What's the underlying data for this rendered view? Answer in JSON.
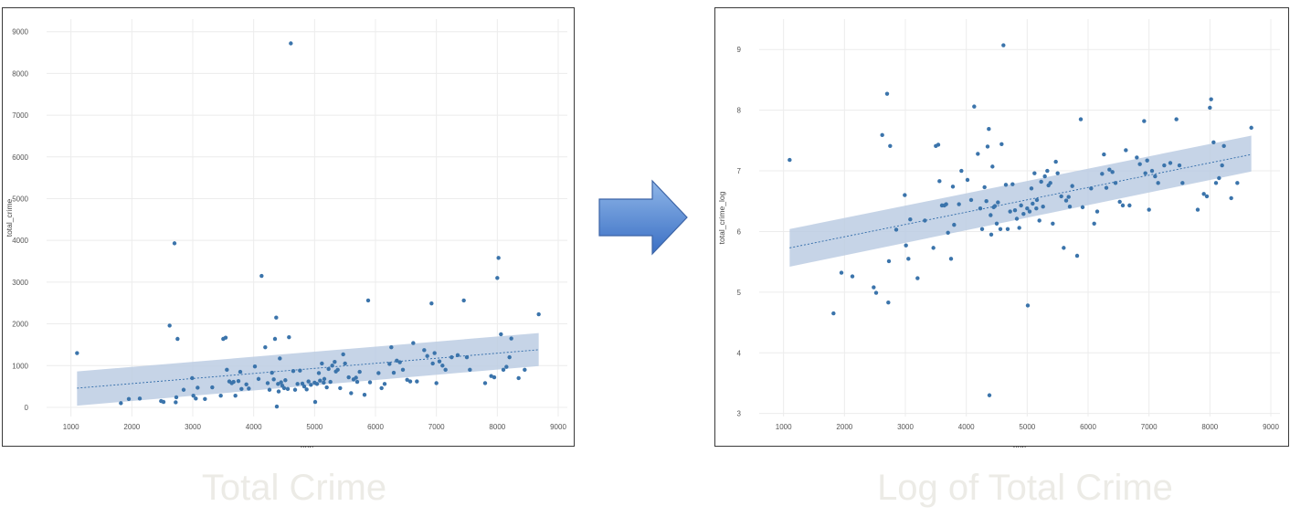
{
  "colors": {
    "point": "#3b74ab",
    "trend": "#2e6aa8",
    "band": "#bccde3",
    "grid": "#ececec",
    "caption": "#ecebe6",
    "arrow_top": "#8fb6e8",
    "arrow_bottom": "#3a6fc4",
    "arrow_stroke": "#3c64a6"
  },
  "arrow_icon": "right-arrow-icon",
  "captions": {
    "left": "Total Crime",
    "right": "Log of Total Crime"
  },
  "chart_data": [
    {
      "type": "scatter",
      "title": "",
      "xlabel": "pop",
      "ylabel": "total_crime",
      "xlim": [
        600,
        9150
      ],
      "ylim": [
        -220,
        9300
      ],
      "xticks": [
        1000,
        2000,
        3000,
        4000,
        5000,
        6000,
        7000,
        8000,
        9000
      ],
      "yticks": [
        0,
        1000,
        2000,
        3000,
        4000,
        5000,
        6000,
        7000,
        8000,
        9000
      ],
      "grid": true,
      "regression": {
        "x": [
          1100,
          8680
        ],
        "y": [
          460,
          1380
        ],
        "ci_low": [
          40,
          990
        ],
        "ci_high": [
          860,
          1780
        ]
      },
      "points": [
        [
          1100,
          1300
        ],
        [
          1820,
          100
        ],
        [
          1950,
          200
        ],
        [
          2130,
          210
        ],
        [
          2480,
          150
        ],
        [
          2520,
          130
        ],
        [
          2620,
          1960
        ],
        [
          2700,
          3930
        ],
        [
          2720,
          120
        ],
        [
          2750,
          1640
        ],
        [
          2730,
          240
        ],
        [
          2850,
          420
        ],
        [
          2990,
          700
        ],
        [
          3010,
          280
        ],
        [
          3050,
          210
        ],
        [
          3080,
          470
        ],
        [
          3200,
          200
        ],
        [
          3320,
          480
        ],
        [
          3460,
          280
        ],
        [
          3500,
          1640
        ],
        [
          3540,
          1670
        ],
        [
          3560,
          900
        ],
        [
          3600,
          620
        ],
        [
          3640,
          580
        ],
        [
          3670,
          610
        ],
        [
          3700,
          280
        ],
        [
          3750,
          630
        ],
        [
          3780,
          850
        ],
        [
          3800,
          440
        ],
        [
          3880,
          550
        ],
        [
          3920,
          450
        ],
        [
          4020,
          980
        ],
        [
          4080,
          680
        ],
        [
          4130,
          3150
        ],
        [
          4190,
          1440
        ],
        [
          4230,
          580
        ],
        [
          4260,
          420
        ],
        [
          4300,
          830
        ],
        [
          4330,
          670
        ],
        [
          4350,
          1640
        ],
        [
          4370,
          2150
        ],
        [
          4380,
          20
        ],
        [
          4400,
          560
        ],
        [
          4410,
          380
        ],
        [
          4430,
          1170
        ],
        [
          4450,
          600
        ],
        [
          4470,
          520
        ],
        [
          4500,
          460
        ],
        [
          4520,
          650
        ],
        [
          4560,
          440
        ],
        [
          4580,
          1680
        ],
        [
          4610,
          8720
        ],
        [
          4650,
          870
        ],
        [
          4680,
          420
        ],
        [
          4720,
          560
        ],
        [
          4760,
          880
        ],
        [
          4800,
          570
        ],
        [
          4830,
          500
        ],
        [
          4870,
          430
        ],
        [
          4900,
          620
        ],
        [
          4940,
          540
        ],
        [
          5000,
          590
        ],
        [
          5010,
          130
        ],
        [
          5040,
          560
        ],
        [
          5070,
          820
        ],
        [
          5090,
          640
        ],
        [
          5120,
          1050
        ],
        [
          5150,
          590
        ],
        [
          5160,
          680
        ],
        [
          5200,
          480
        ],
        [
          5230,
          920
        ],
        [
          5260,
          610
        ],
        [
          5290,
          1000
        ],
        [
          5330,
          1090
        ],
        [
          5350,
          860
        ],
        [
          5380,
          900
        ],
        [
          5420,
          460
        ],
        [
          5470,
          1270
        ],
        [
          5500,
          1050
        ],
        [
          5560,
          720
        ],
        [
          5600,
          340
        ],
        [
          5640,
          670
        ],
        [
          5680,
          710
        ],
        [
          5700,
          610
        ],
        [
          5740,
          850
        ],
        [
          5820,
          300
        ],
        [
          5880,
          2560
        ],
        [
          5910,
          600
        ],
        [
          6050,
          820
        ],
        [
          6100,
          460
        ],
        [
          6150,
          560
        ],
        [
          6230,
          1040
        ],
        [
          6260,
          1440
        ],
        [
          6300,
          830
        ],
        [
          6350,
          1120
        ],
        [
          6400,
          1080
        ],
        [
          6450,
          900
        ],
        [
          6520,
          660
        ],
        [
          6570,
          620
        ],
        [
          6620,
          1540
        ],
        [
          6680,
          620
        ],
        [
          6800,
          1370
        ],
        [
          6850,
          1230
        ],
        [
          6920,
          2490
        ],
        [
          6940,
          1050
        ],
        [
          6970,
          1300
        ],
        [
          7000,
          580
        ],
        [
          7050,
          1100
        ],
        [
          7100,
          1000
        ],
        [
          7150,
          900
        ],
        [
          7250,
          1200
        ],
        [
          7350,
          1250
        ],
        [
          7450,
          2560
        ],
        [
          7500,
          1200
        ],
        [
          7550,
          900
        ],
        [
          7800,
          580
        ],
        [
          7900,
          750
        ],
        [
          7950,
          720
        ],
        [
          8000,
          3100
        ],
        [
          8020,
          3580
        ],
        [
          8060,
          1750
        ],
        [
          8100,
          900
        ],
        [
          8150,
          970
        ],
        [
          8200,
          1200
        ],
        [
          8230,
          1650
        ],
        [
          8350,
          700
        ],
        [
          8450,
          900
        ],
        [
          8680,
          2230
        ]
      ]
    },
    {
      "type": "scatter",
      "title": "",
      "xlabel": "pop",
      "ylabel": "total_crime_log",
      "xlim": [
        600,
        9150
      ],
      "ylim": [
        2.95,
        9.5
      ],
      "xticks": [
        1000,
        2000,
        3000,
        4000,
        5000,
        6000,
        7000,
        8000,
        9000
      ],
      "yticks": [
        3,
        4,
        5,
        6,
        7,
        8,
        9
      ],
      "grid": true,
      "regression": {
        "x": [
          1100,
          8680
        ],
        "y": [
          5.73,
          7.27
        ],
        "ci_low": [
          5.42,
          6.99
        ],
        "ci_high": [
          6.04,
          7.58
        ]
      },
      "points": [
        [
          1100,
          7.18
        ],
        [
          1820,
          4.65
        ],
        [
          1950,
          5.32
        ],
        [
          2130,
          5.26
        ],
        [
          2480,
          5.08
        ],
        [
          2520,
          4.99
        ],
        [
          2620,
          7.59
        ],
        [
          2700,
          8.27
        ],
        [
          2720,
          4.83
        ],
        [
          2750,
          7.41
        ],
        [
          2730,
          5.51
        ],
        [
          2850,
          6.03
        ],
        [
          2990,
          6.6
        ],
        [
          3010,
          5.77
        ],
        [
          3050,
          5.55
        ],
        [
          3080,
          6.2
        ],
        [
          3200,
          5.23
        ],
        [
          3320,
          6.18
        ],
        [
          3460,
          5.73
        ],
        [
          3500,
          7.41
        ],
        [
          3540,
          7.43
        ],
        [
          3560,
          6.83
        ],
        [
          3600,
          6.43
        ],
        [
          3640,
          6.43
        ],
        [
          3670,
          6.45
        ],
        [
          3700,
          5.98
        ],
        [
          3750,
          5.55
        ],
        [
          3780,
          6.74
        ],
        [
          3800,
          6.11
        ],
        [
          3880,
          6.45
        ],
        [
          3920,
          7.0
        ],
        [
          4020,
          6.85
        ],
        [
          4080,
          6.52
        ],
        [
          4130,
          8.06
        ],
        [
          4190,
          7.28
        ],
        [
          4230,
          6.38
        ],
        [
          4260,
          6.04
        ],
        [
          4300,
          6.73
        ],
        [
          4330,
          6.5
        ],
        [
          4350,
          7.4
        ],
        [
          4370,
          7.69
        ],
        [
          4380,
          3.3
        ],
        [
          4400,
          6.27
        ],
        [
          4410,
          5.95
        ],
        [
          4430,
          7.07
        ],
        [
          4450,
          6.4
        ],
        [
          4470,
          6.42
        ],
        [
          4500,
          6.13
        ],
        [
          4520,
          6.48
        ],
        [
          4560,
          6.04
        ],
        [
          4580,
          7.44
        ],
        [
          4610,
          9.07
        ],
        [
          4650,
          6.77
        ],
        [
          4680,
          6.04
        ],
        [
          4720,
          6.33
        ],
        [
          4760,
          6.78
        ],
        [
          4800,
          6.35
        ],
        [
          4830,
          6.21
        ],
        [
          4870,
          6.06
        ],
        [
          4900,
          6.43
        ],
        [
          4940,
          6.29
        ],
        [
          5000,
          6.38
        ],
        [
          5010,
          4.78
        ],
        [
          5040,
          6.33
        ],
        [
          5070,
          6.71
        ],
        [
          5090,
          6.46
        ],
        [
          5120,
          6.96
        ],
        [
          5150,
          6.38
        ],
        [
          5160,
          6.52
        ],
        [
          5200,
          6.18
        ],
        [
          5230,
          6.82
        ],
        [
          5260,
          6.41
        ],
        [
          5290,
          6.91
        ],
        [
          5330,
          7.0
        ],
        [
          5350,
          6.76
        ],
        [
          5380,
          6.8
        ],
        [
          5420,
          6.13
        ],
        [
          5470,
          7.15
        ],
        [
          5500,
          6.96
        ],
        [
          5560,
          6.58
        ],
        [
          5600,
          5.73
        ],
        [
          5640,
          6.51
        ],
        [
          5680,
          6.57
        ],
        [
          5700,
          6.41
        ],
        [
          5740,
          6.75
        ],
        [
          5820,
          5.6
        ],
        [
          5880,
          7.85
        ],
        [
          5910,
          6.4
        ],
        [
          6050,
          6.71
        ],
        [
          6100,
          6.13
        ],
        [
          6150,
          6.33
        ],
        [
          6230,
          6.95
        ],
        [
          6260,
          7.27
        ],
        [
          6300,
          6.72
        ],
        [
          6350,
          7.02
        ],
        [
          6400,
          6.98
        ],
        [
          6450,
          6.8
        ],
        [
          6520,
          6.49
        ],
        [
          6570,
          6.43
        ],
        [
          6620,
          7.34
        ],
        [
          6680,
          6.43
        ],
        [
          6800,
          7.22
        ],
        [
          6850,
          7.11
        ],
        [
          6920,
          7.82
        ],
        [
          6940,
          6.96
        ],
        [
          6970,
          7.17
        ],
        [
          7000,
          6.36
        ],
        [
          7050,
          7.0
        ],
        [
          7100,
          6.91
        ],
        [
          7150,
          6.8
        ],
        [
          7250,
          7.09
        ],
        [
          7350,
          7.13
        ],
        [
          7450,
          7.85
        ],
        [
          7500,
          7.09
        ],
        [
          7550,
          6.8
        ],
        [
          7800,
          6.36
        ],
        [
          7900,
          6.62
        ],
        [
          7950,
          6.58
        ],
        [
          8000,
          8.04
        ],
        [
          8020,
          8.18
        ],
        [
          8060,
          7.47
        ],
        [
          8100,
          6.8
        ],
        [
          8150,
          6.88
        ],
        [
          8200,
          7.09
        ],
        [
          8230,
          7.41
        ],
        [
          8350,
          6.55
        ],
        [
          8450,
          6.8
        ],
        [
          8680,
          7.71
        ]
      ]
    }
  ]
}
